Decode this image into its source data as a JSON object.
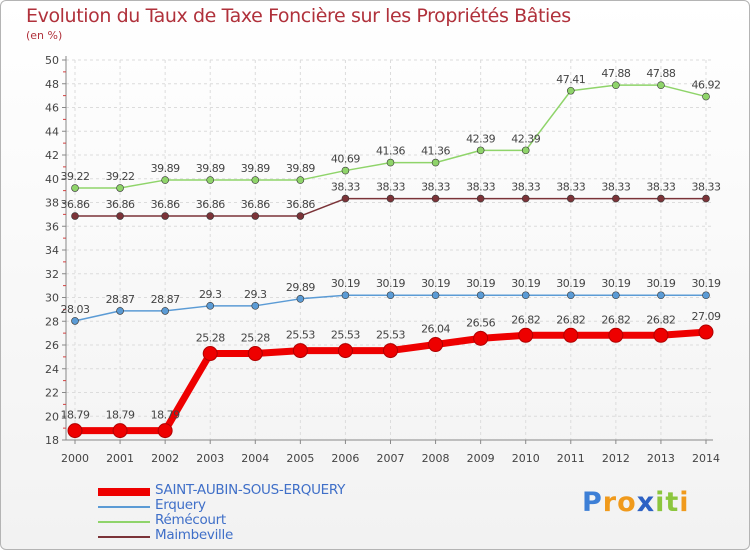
{
  "title": "Evolution du Taux de Taxe Foncière sur les Propriétés Bâties",
  "subtitle": "(en %)",
  "logo": {
    "text": "Proxiti",
    "letters": [
      {
        "ch": "P",
        "color": "#3d7fd6"
      },
      {
        "ch": "r",
        "color": "#f09a1c"
      },
      {
        "ch": "o",
        "color": "#f09a1c"
      },
      {
        "ch": "x",
        "color": "#2e62c4"
      },
      {
        "ch": "i",
        "color": "#8cc63e"
      },
      {
        "ch": "t",
        "color": "#8cc63e"
      },
      {
        "ch": "i",
        "color": "#f09a1c"
      }
    ]
  },
  "chart_data": {
    "type": "line",
    "title": "Evolution du Taux de Taxe Foncière sur les Propriétés Bâties",
    "ylabel": "(en %)",
    "xlabel": "",
    "x": [
      "2000",
      "2001",
      "2002",
      "2003",
      "2004",
      "2005",
      "2006",
      "2007",
      "2008",
      "2009",
      "2010",
      "2011",
      "2012",
      "2013",
      "2014"
    ],
    "yticks": [
      18,
      20,
      22,
      24,
      26,
      28,
      30,
      32,
      34,
      36,
      38,
      40,
      42,
      44,
      46,
      48,
      50
    ],
    "ylim": [
      18,
      50
    ],
    "grid": true,
    "legend_position": "bottom-left",
    "series": [
      {
        "name": "SAINT-AUBIN-SOUS-ERQUERY",
        "color": "#ee0000",
        "values": [
          18.79,
          18.79,
          18.79,
          25.28,
          25.28,
          25.53,
          25.53,
          25.53,
          26.04,
          26.56,
          26.82,
          26.82,
          26.82,
          26.82,
          27.09
        ],
        "labels": [
          "18.79",
          "18.79",
          "18.79",
          "25.28",
          "25.28",
          "25.53",
          "25.53",
          "25.53",
          "26.04",
          "26.56",
          "26.82",
          "26.82",
          "26.82",
          "26.82",
          "27.09"
        ]
      },
      {
        "name": "Erquery",
        "color": "#5b9bd5",
        "values": [
          28.03,
          28.87,
          28.87,
          29.3,
          29.3,
          29.89,
          30.19,
          30.19,
          30.19,
          30.19,
          30.19,
          30.19,
          30.19,
          30.19,
          30.19
        ],
        "labels": [
          "28.03",
          "28.87",
          "28.87",
          "29.3",
          "29.3",
          "29.89",
          "30.19",
          "30.19",
          "30.19",
          "30.19",
          "30.19",
          "30.19",
          "30.19",
          "30.19",
          "30.19"
        ]
      },
      {
        "name": "Rémécourt",
        "color": "#8fd46a",
        "values": [
          39.22,
          39.22,
          39.89,
          39.89,
          39.89,
          39.89,
          40.69,
          41.36,
          41.36,
          42.39,
          42.39,
          47.41,
          47.88,
          47.88,
          46.92
        ],
        "labels": [
          "39.22",
          "39.22",
          "39.89",
          "39.89",
          "39.89",
          "39.89",
          "40.69",
          "41.36",
          "41.36",
          "42.39",
          "42.39",
          "47.41",
          "47.88",
          "47.88",
          "46.92"
        ]
      },
      {
        "name": "Maimbeville",
        "color": "#7b3338",
        "values": [
          36.86,
          36.86,
          36.86,
          36.86,
          36.86,
          36.86,
          38.33,
          38.33,
          38.33,
          38.33,
          38.33,
          38.33,
          38.33,
          38.33,
          38.33
        ],
        "labels": [
          "36.86",
          "36.86",
          "36.86",
          "36.86",
          "36.86",
          "36.86",
          "38.33",
          "38.33",
          "38.33",
          "38.33",
          "38.33",
          "38.33",
          "38.33",
          "38.33",
          "38.33"
        ]
      }
    ]
  }
}
